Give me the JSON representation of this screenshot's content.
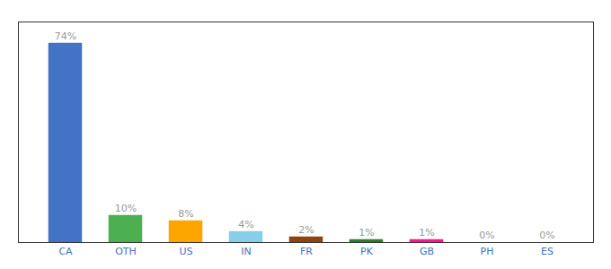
{
  "chart_data": {
    "type": "bar",
    "categories": [
      "CA",
      "OTH",
      "US",
      "IN",
      "FR",
      "PK",
      "GB",
      "PH",
      "ES"
    ],
    "values": [
      74,
      10,
      8,
      4,
      2,
      1,
      1,
      0,
      0
    ],
    "value_labels": [
      "74%",
      "10%",
      "8%",
      "4%",
      "2%",
      "1%",
      "1%",
      "0%",
      "0%"
    ],
    "colors": [
      "#4472C4",
      "#4CAF50",
      "#FFA500",
      "#87CEEB",
      "#8B4513",
      "#2E7D32",
      "#FF1493",
      "#FFFFFF",
      "#FFFFFF"
    ],
    "ylim": [
      0,
      82
    ],
    "data_labels": true,
    "tick_labels": "x",
    "grid": false
  }
}
